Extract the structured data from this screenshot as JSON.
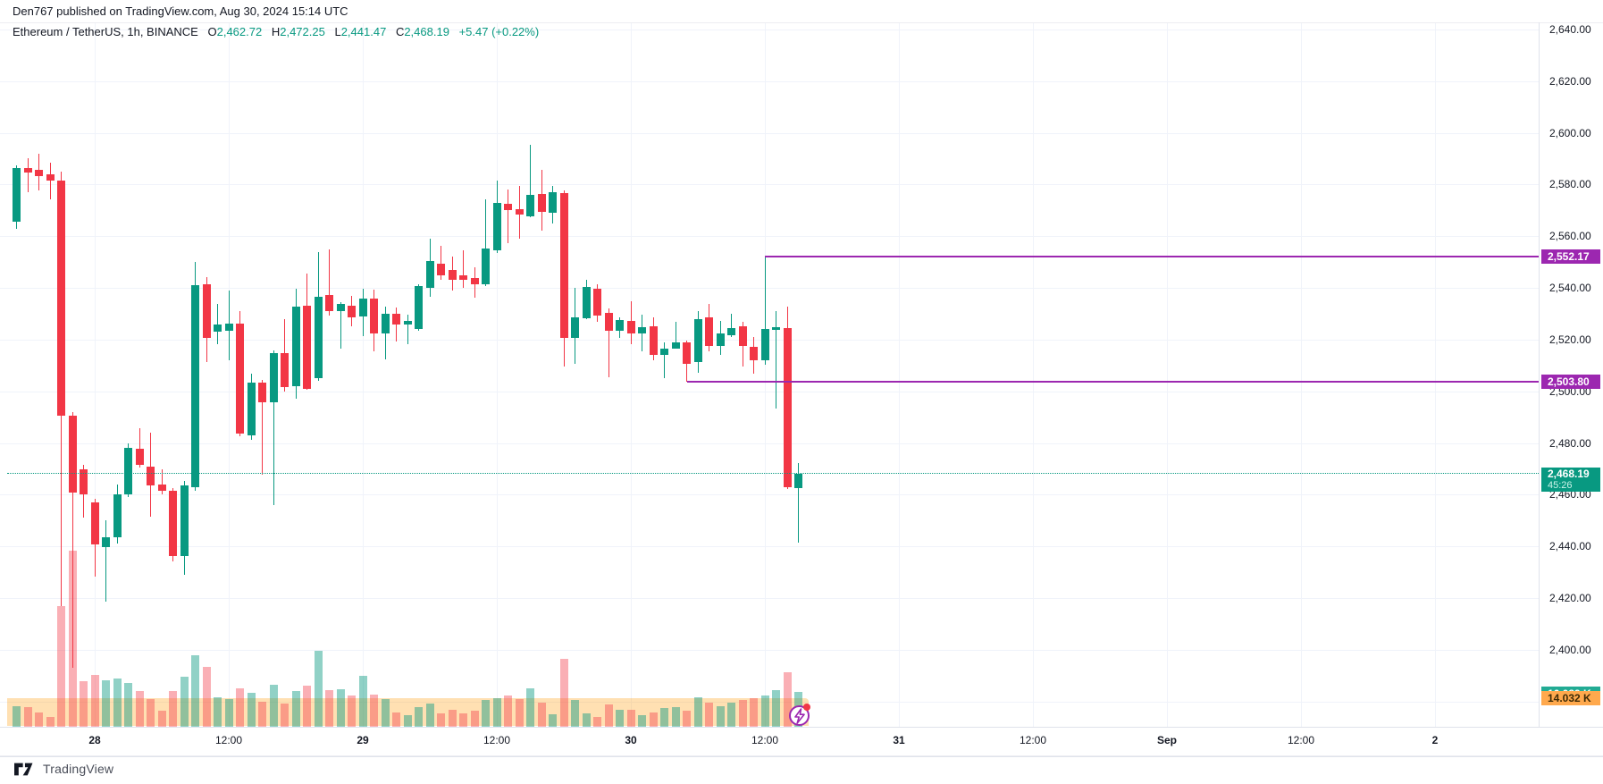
{
  "header": {
    "publisher_line": "Den767 published on TradingView.com, Aug 30, 2024 15:14 UTC",
    "legend": {
      "symbol_full": "Ethereum / TetherUS, 1h, BINANCE",
      "o_label": "O",
      "o_value": "2,462.72",
      "h_label": "H",
      "h_value": "2,472.25",
      "l_label": "L",
      "l_value": "2,441.47",
      "c_label": "C",
      "c_value": "2,468.19",
      "change": "+5.47 (+0.22%)"
    }
  },
  "price_axis": {
    "tick_labels": [
      "2,640.00",
      "2,620.00",
      "2,600.00",
      "2,580.00",
      "2,560.00",
      "2,540.00",
      "2,520.00",
      "2,500.00",
      "2,480.00",
      "2,460.00",
      "2,440.00",
      "2,420.00",
      "2,400.00"
    ],
    "tick_prices": [
      2640,
      2620,
      2600,
      2580,
      2560,
      2540,
      2520,
      2500,
      2480,
      2460,
      2440,
      2420,
      2400
    ]
  },
  "time_axis": {
    "tick_labels": [
      "28",
      "12:00",
      "29",
      "12:00",
      "30",
      "12:00",
      "31",
      "12:00",
      "Sep",
      "12:00",
      "2"
    ],
    "day_flags": [
      true,
      false,
      true,
      false,
      true,
      false,
      true,
      false,
      true,
      false,
      true
    ]
  },
  "footer": {
    "brand": "TradingView",
    "logo_icon": "tradingview-logo"
  },
  "icons": {
    "replay_button": "lightning-icon",
    "notification": "red-dot"
  },
  "colors": {
    "up": "#089981",
    "down": "#f23645",
    "vol_up": "rgba(8,153,129,0.45)",
    "vol_down": "rgba(242,54,69,0.40)",
    "level": "#9c27b0",
    "vol_ma_band": "rgba(255,152,0,0.30)",
    "badge_current": "#089981",
    "badge_vol": "#22ab94",
    "badge_vol_ma": "#ffa94d"
  },
  "chart_data": {
    "type": "candlestick",
    "title": "Ethereum / TetherUS, 1h, BINANCE",
    "ohlc_display": {
      "open": 2462.72,
      "high": 2472.25,
      "low": 2441.47,
      "close": 2468.19,
      "change": "+5.47 (+0.22%)"
    },
    "y_axis": {
      "min": 2380,
      "max": 2650,
      "step": 20,
      "grid": true
    },
    "x_axis": {
      "from": "Aug 27 17:00",
      "to": "Sep 2",
      "visible_data_until": "Aug 30 15:00"
    },
    "levels": [
      {
        "label": "2,552.17",
        "price": 2552.17,
        "starts_at_index": 67
      },
      {
        "label": "2,503.80",
        "price": 2503.8,
        "starts_at_index": 60
      }
    ],
    "current_price": {
      "value": 2468.19,
      "label": "2,468.19",
      "countdown": "45:26"
    },
    "volume": {
      "current_label": "16.089 K",
      "ma_label": "14.032 K",
      "ma_value_k": 14.032
    },
    "candles": [
      {
        "t": "Aug 27 17:00",
        "o": 2565.5,
        "h": 2587.5,
        "l": 2563.0,
        "c": 2586.4,
        "v": 9.5
      },
      {
        "t": "Aug 27 18:00",
        "o": 2586.4,
        "h": 2590.2,
        "l": 2577.1,
        "c": 2584.7,
        "v": 9.0
      },
      {
        "t": "Aug 27 19:00",
        "o": 2585.7,
        "h": 2591.9,
        "l": 2577.7,
        "c": 2583.3,
        "v": 6.7
      },
      {
        "t": "Aug 27 20:00",
        "o": 2584.0,
        "h": 2588.5,
        "l": 2574.3,
        "c": 2581.6,
        "v": 4.7
      },
      {
        "t": "Aug 27 21:00",
        "o": 2581.6,
        "h": 2585.0,
        "l": 2416.9,
        "c": 2490.6,
        "v": 56.0
      },
      {
        "t": "Aug 27 22:00",
        "o": 2490.6,
        "h": 2492.0,
        "l": 2393.1,
        "c": 2460.9,
        "v": 82.0
      },
      {
        "t": "Aug 27 23:00",
        "o": 2469.8,
        "h": 2471.5,
        "l": 2451.1,
        "c": 2460.2,
        "v": 21.0
      },
      {
        "t": "Aug 28 00:00",
        "o": 2457.1,
        "h": 2458.4,
        "l": 2428.4,
        "c": 2440.8,
        "v": 24.0
      },
      {
        "t": "Aug 28 01:00",
        "o": 2439.7,
        "h": 2450.1,
        "l": 2418.7,
        "c": 2443.5,
        "v": 21.7
      },
      {
        "t": "Aug 28 02:00",
        "o": 2443.5,
        "h": 2464.0,
        "l": 2441.0,
        "c": 2460.2,
        "v": 22.4
      },
      {
        "t": "Aug 28 03:00",
        "o": 2460.2,
        "h": 2479.9,
        "l": 2459.2,
        "c": 2478.2,
        "v": 20.4
      },
      {
        "t": "Aug 28 04:00",
        "o": 2477.8,
        "h": 2485.8,
        "l": 2470.6,
        "c": 2471.6,
        "v": 16.8
      },
      {
        "t": "Aug 28 05:00",
        "o": 2470.9,
        "h": 2484.0,
        "l": 2451.5,
        "c": 2463.6,
        "v": 13.0
      },
      {
        "t": "Aug 28 06:00",
        "o": 2463.9,
        "h": 2469.9,
        "l": 2460.2,
        "c": 2461.5,
        "v": 7.5
      },
      {
        "t": "Aug 28 07:00",
        "o": 2461.5,
        "h": 2462.5,
        "l": 2434.2,
        "c": 2436.3,
        "v": 16.5
      },
      {
        "t": "Aug 28 08:00",
        "o": 2436.3,
        "h": 2465.3,
        "l": 2429.0,
        "c": 2463.6,
        "v": 23.4
      },
      {
        "t": "Aug 28 09:00",
        "o": 2462.9,
        "h": 2550.1,
        "l": 2461.5,
        "c": 2541.1,
        "v": 33.4
      },
      {
        "t": "Aug 28 10:00",
        "o": 2541.4,
        "h": 2544.2,
        "l": 2511.4,
        "c": 2520.7,
        "v": 27.9
      },
      {
        "t": "Aug 28 11:00",
        "o": 2523.2,
        "h": 2533.8,
        "l": 2518.3,
        "c": 2526.0,
        "v": 13.7
      },
      {
        "t": "Aug 28 12:00",
        "o": 2523.4,
        "h": 2539.0,
        "l": 2512.1,
        "c": 2526.2,
        "v": 13.0
      },
      {
        "t": "Aug 28 13:00",
        "o": 2526.2,
        "h": 2531.0,
        "l": 2482.7,
        "c": 2483.7,
        "v": 17.9
      },
      {
        "t": "Aug 28 14:00",
        "o": 2483.0,
        "h": 2507.0,
        "l": 2481.3,
        "c": 2503.4,
        "v": 15.8
      },
      {
        "t": "Aug 28 15:00",
        "o": 2503.4,
        "h": 2504.5,
        "l": 2467.9,
        "c": 2495.8,
        "v": 11.6
      },
      {
        "t": "Aug 28 16:00",
        "o": 2495.8,
        "h": 2516.0,
        "l": 2456.0,
        "c": 2514.8,
        "v": 19.6
      },
      {
        "t": "Aug 28 17:00",
        "o": 2514.8,
        "h": 2527.9,
        "l": 2499.9,
        "c": 2501.7,
        "v": 10.9
      },
      {
        "t": "Aug 28 18:00",
        "o": 2502.0,
        "h": 2539.7,
        "l": 2497.2,
        "c": 2532.8,
        "v": 16.5
      },
      {
        "t": "Aug 28 19:00",
        "o": 2533.1,
        "h": 2545.6,
        "l": 2500.6,
        "c": 2501.0,
        "v": 19.2
      },
      {
        "t": "Aug 28 20:00",
        "o": 2505.1,
        "h": 2553.9,
        "l": 2504.0,
        "c": 2536.6,
        "v": 35.5
      },
      {
        "t": "Aug 28 21:00",
        "o": 2537.3,
        "h": 2554.9,
        "l": 2529.3,
        "c": 2531.0,
        "v": 17.2
      },
      {
        "t": "Aug 28 22:00",
        "o": 2531.0,
        "h": 2534.5,
        "l": 2516.6,
        "c": 2533.8,
        "v": 17.5
      },
      {
        "t": "Aug 28 23:00",
        "o": 2533.1,
        "h": 2537.0,
        "l": 2525.1,
        "c": 2528.6,
        "v": 14.7
      },
      {
        "t": "Aug 29 00:00",
        "o": 2529.0,
        "h": 2539.7,
        "l": 2521.3,
        "c": 2535.9,
        "v": 23.7
      },
      {
        "t": "Aug 29 01:00",
        "o": 2535.9,
        "h": 2539.4,
        "l": 2515.5,
        "c": 2522.4,
        "v": 15.0
      },
      {
        "t": "Aug 29 02:00",
        "o": 2522.4,
        "h": 2532.8,
        "l": 2512.4,
        "c": 2530.0,
        "v": 13.0
      },
      {
        "t": "Aug 29 03:00",
        "o": 2530.0,
        "h": 2532.4,
        "l": 2519.3,
        "c": 2525.9,
        "v": 6.8
      },
      {
        "t": "Aug 29 04:00",
        "o": 2525.9,
        "h": 2529.7,
        "l": 2518.3,
        "c": 2527.3,
        "v": 5.4
      },
      {
        "t": "Aug 29 05:00",
        "o": 2524.0,
        "h": 2541.4,
        "l": 2523.5,
        "c": 2540.7,
        "v": 9.2
      },
      {
        "t": "Aug 29 06:00",
        "o": 2540.0,
        "h": 2559.1,
        "l": 2536.6,
        "c": 2550.4,
        "v": 10.9
      },
      {
        "t": "Aug 29 07:00",
        "o": 2549.4,
        "h": 2556.3,
        "l": 2543.2,
        "c": 2544.9,
        "v": 6.4
      },
      {
        "t": "Aug 29 08:00",
        "o": 2547.0,
        "h": 2552.2,
        "l": 2539.0,
        "c": 2543.2,
        "v": 7.8
      },
      {
        "t": "Aug 29 09:00",
        "o": 2544.9,
        "h": 2554.6,
        "l": 2540.1,
        "c": 2543.2,
        "v": 6.4
      },
      {
        "t": "Aug 29 10:00",
        "o": 2543.9,
        "h": 2548.0,
        "l": 2536.2,
        "c": 2541.5,
        "v": 7.5
      },
      {
        "t": "Aug 29 11:00",
        "o": 2541.5,
        "h": 2574.3,
        "l": 2540.8,
        "c": 2555.3,
        "v": 12.4
      },
      {
        "t": "Aug 29 12:00",
        "o": 2554.6,
        "h": 2581.5,
        "l": 2553.6,
        "c": 2572.9,
        "v": 13.4
      },
      {
        "t": "Aug 29 13:00",
        "o": 2572.6,
        "h": 2578.1,
        "l": 2557.4,
        "c": 2570.2,
        "v": 14.7
      },
      {
        "t": "Aug 29 14:00",
        "o": 2570.5,
        "h": 2579.5,
        "l": 2559.1,
        "c": 2568.4,
        "v": 12.8
      },
      {
        "t": "Aug 29 15:00",
        "o": 2567.7,
        "h": 2595.4,
        "l": 2567.4,
        "c": 2576.0,
        "v": 17.9
      },
      {
        "t": "Aug 29 16:00",
        "o": 2576.3,
        "h": 2585.7,
        "l": 2562.2,
        "c": 2569.5,
        "v": 11.4
      },
      {
        "t": "Aug 29 17:00",
        "o": 2569.2,
        "h": 2579.5,
        "l": 2565.0,
        "c": 2577.1,
        "v": 5.9
      },
      {
        "t": "Aug 29 18:00",
        "o": 2576.7,
        "h": 2577.7,
        "l": 2509.6,
        "c": 2520.7,
        "v": 31.8
      },
      {
        "t": "Aug 29 19:00",
        "o": 2520.7,
        "h": 2540.1,
        "l": 2510.7,
        "c": 2528.6,
        "v": 12.6
      },
      {
        "t": "Aug 29 20:00",
        "o": 2528.3,
        "h": 2543.2,
        "l": 2527.9,
        "c": 2540.4,
        "v": 6.4
      },
      {
        "t": "Aug 29 21:00",
        "o": 2539.7,
        "h": 2541.5,
        "l": 2526.9,
        "c": 2529.3,
        "v": 4.7
      },
      {
        "t": "Aug 29 22:00",
        "o": 2530.3,
        "h": 2532.0,
        "l": 2505.5,
        "c": 2523.5,
        "v": 10.5
      },
      {
        "t": "Aug 29 23:00",
        "o": 2523.5,
        "h": 2528.6,
        "l": 2520.7,
        "c": 2527.6,
        "v": 7.9
      },
      {
        "t": "Aug 30 00:00",
        "o": 2527.2,
        "h": 2534.9,
        "l": 2518.3,
        "c": 2522.4,
        "v": 7.9
      },
      {
        "t": "Aug 30 01:00",
        "o": 2522.4,
        "h": 2529.7,
        "l": 2515.5,
        "c": 2524.9,
        "v": 5.4
      },
      {
        "t": "Aug 30 02:00",
        "o": 2525.2,
        "h": 2528.6,
        "l": 2512.1,
        "c": 2514.1,
        "v": 6.7
      },
      {
        "t": "Aug 30 03:00",
        "o": 2514.1,
        "h": 2518.9,
        "l": 2505.1,
        "c": 2516.5,
        "v": 8.8
      },
      {
        "t": "Aug 30 04:00",
        "o": 2516.5,
        "h": 2526.9,
        "l": 2516.5,
        "c": 2519.0,
        "v": 9.2
      },
      {
        "t": "Aug 30 05:00",
        "o": 2519.0,
        "h": 2519.7,
        "l": 2503.8,
        "c": 2510.7,
        "v": 7.5
      },
      {
        "t": "Aug 30 06:00",
        "o": 2511.4,
        "h": 2531.0,
        "l": 2507.2,
        "c": 2527.9,
        "v": 13.7
      },
      {
        "t": "Aug 30 07:00",
        "o": 2528.6,
        "h": 2533.8,
        "l": 2515.5,
        "c": 2517.6,
        "v": 11.2
      },
      {
        "t": "Aug 30 08:00",
        "o": 2517.6,
        "h": 2527.2,
        "l": 2514.1,
        "c": 2522.4,
        "v": 9.6
      },
      {
        "t": "Aug 30 09:00",
        "o": 2521.7,
        "h": 2529.9,
        "l": 2521.0,
        "c": 2524.5,
        "v": 11.2
      },
      {
        "t": "Aug 30 10:00",
        "o": 2525.2,
        "h": 2526.9,
        "l": 2509.6,
        "c": 2517.6,
        "v": 12.5
      },
      {
        "t": "Aug 30 11:00",
        "o": 2517.2,
        "h": 2521.0,
        "l": 2506.8,
        "c": 2512.1,
        "v": 13.3
      },
      {
        "t": "Aug 30 12:00",
        "o": 2512.1,
        "h": 2552.17,
        "l": 2510.4,
        "c": 2524.2,
        "v": 14.6
      },
      {
        "t": "Aug 30 13:00",
        "o": 2523.8,
        "h": 2531.0,
        "l": 2493.4,
        "c": 2524.9,
        "v": 16.9
      },
      {
        "t": "Aug 30 14:00",
        "o": 2524.5,
        "h": 2532.8,
        "l": 2462.2,
        "c": 2462.9,
        "v": 25.2
      },
      {
        "t": "Aug 30 15:00",
        "o": 2462.72,
        "h": 2472.25,
        "l": 2441.47,
        "c": 2468.19,
        "v": 16.089
      }
    ]
  }
}
